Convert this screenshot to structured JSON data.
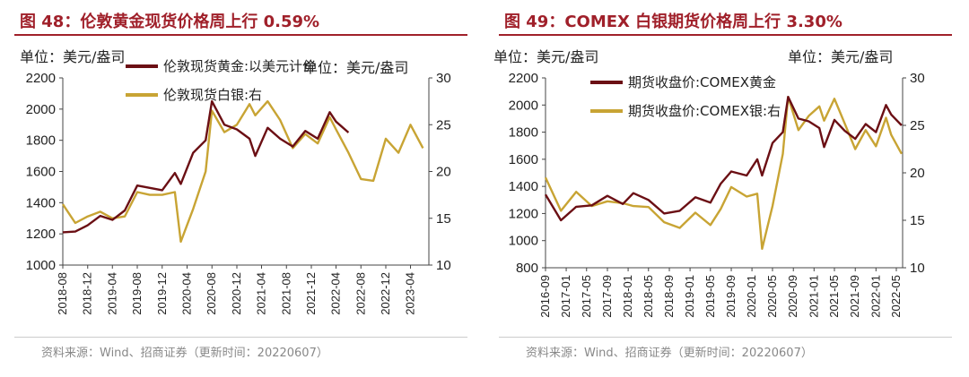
{
  "charts": [
    {
      "title": "图 48：伦敦黄金现货价格周上行 0.59%",
      "left_unit": "单位：美元/盎司",
      "right_unit": "单位：美元/盎司",
      "source": "资料来源：Wind、招商证券（更新时间：20220607）"
    },
    {
      "title": "图 49：COMEX 白银期货价格周上行 3.30%",
      "left_unit": "单位：美元/盎司",
      "right_unit": "单位：美元/盎司",
      "source": "资料来源：Wind、招商证券（更新时间：20220607）"
    }
  ],
  "chart_data": [
    {
      "type": "line",
      "title": "图 48：伦敦黄金现货价格周上行 0.59%",
      "x_ticks": [
        "2018-08",
        "2018-12",
        "2019-04",
        "2019-08",
        "2019-12",
        "2020-04",
        "2020-08",
        "2020-12",
        "2021-04",
        "2021-08",
        "2021-12",
        "2022-04",
        "2022-08",
        "2022-12",
        "2023-04"
      ],
      "x_start": "2018-08-01",
      "x_end": "2023-06-30",
      "y_left": {
        "min": 1000,
        "max": 2200,
        "ticks": [
          1000,
          1200,
          1400,
          1600,
          1800,
          2000,
          2200
        ]
      },
      "y_right": {
        "min": 10,
        "max": 30,
        "ticks": [
          10,
          15,
          20,
          25,
          30
        ]
      },
      "series": [
        {
          "name": "伦敦现货黄金:以美元计价",
          "axis": "left",
          "color": "#6b0f14",
          "x": [
            "2018-08",
            "2018-10",
            "2018-12",
            "2019-02",
            "2019-04",
            "2019-06",
            "2019-08",
            "2019-10",
            "2019-12",
            "2020-02",
            "2020-03",
            "2020-05",
            "2020-07",
            "2020-08",
            "2020-10",
            "2020-12",
            "2021-02",
            "2021-03",
            "2021-05",
            "2021-07",
            "2021-09",
            "2021-11",
            "2022-01",
            "2022-03",
            "2022-04",
            "2022-06"
          ],
          "values": [
            1210,
            1215,
            1255,
            1315,
            1290,
            1350,
            1510,
            1495,
            1480,
            1590,
            1520,
            1720,
            1800,
            2050,
            1900,
            1870,
            1810,
            1700,
            1880,
            1810,
            1760,
            1860,
            1810,
            1980,
            1920,
            1850
          ]
        },
        {
          "name": "伦敦现货白银:右",
          "axis": "right",
          "color": "#c8a434",
          "x": [
            "2018-08",
            "2018-10",
            "2018-12",
            "2019-02",
            "2019-04",
            "2019-06",
            "2019-08",
            "2019-10",
            "2019-12",
            "2020-02",
            "2020-03",
            "2020-05",
            "2020-07",
            "2020-08",
            "2020-10",
            "2020-12",
            "2021-02",
            "2021-03",
            "2021-05",
            "2021-07",
            "2021-09",
            "2021-11",
            "2022-01",
            "2022-03",
            "2022-04",
            "2022-06",
            "2022-08",
            "2022-10",
            "2022-12",
            "2023-02",
            "2023-04",
            "2023-06"
          ],
          "values": [
            16.5,
            14.5,
            15.2,
            15.7,
            15.0,
            15.2,
            17.8,
            17.5,
            17.5,
            17.8,
            12.5,
            16.0,
            20.0,
            26.5,
            24.2,
            25.0,
            27.2,
            26.0,
            27.5,
            25.5,
            22.5,
            24.0,
            23.0,
            25.8,
            24.5,
            22.0,
            19.2,
            19.0,
            23.5,
            22.0,
            25.0,
            22.5
          ]
        }
      ]
    },
    {
      "type": "line",
      "title": "图 49：COMEX 白银期货价格周上行 3.30%",
      "x_ticks": [
        "2016-09",
        "2017-01",
        "2017-05",
        "2017-09",
        "2018-01",
        "2018-05",
        "2018-09",
        "2019-01",
        "2019-05",
        "2019-09",
        "2020-01",
        "2020-05",
        "2020-09",
        "2021-01",
        "2021-05",
        "2021-09",
        "2022-01",
        "2022-05"
      ],
      "x_start": "2016-09-01",
      "x_end": "2022-06-07",
      "y_left": {
        "min": 800,
        "max": 2200,
        "ticks": [
          800,
          1000,
          1200,
          1400,
          1600,
          1800,
          2000,
          2200
        ]
      },
      "y_right": {
        "min": 10,
        "max": 30,
        "ticks": [
          10,
          15,
          20,
          25,
          30
        ]
      },
      "series": [
        {
          "name": "期货收盘价:COMEX黄金",
          "axis": "left",
          "color": "#6b0f14",
          "x": [
            "2016-09",
            "2016-12",
            "2017-03",
            "2017-06",
            "2017-09",
            "2017-12",
            "2018-02",
            "2018-05",
            "2018-08",
            "2018-11",
            "2019-02",
            "2019-05",
            "2019-07",
            "2019-09",
            "2019-12",
            "2020-02",
            "2020-03",
            "2020-05",
            "2020-07",
            "2020-08",
            "2020-10",
            "2020-12",
            "2021-02",
            "2021-03",
            "2021-05",
            "2021-07",
            "2021-09",
            "2021-11",
            "2022-01",
            "2022-03",
            "2022-04",
            "2022-06"
          ],
          "values": [
            1340,
            1150,
            1250,
            1260,
            1330,
            1270,
            1350,
            1300,
            1200,
            1220,
            1320,
            1280,
            1420,
            1510,
            1480,
            1600,
            1480,
            1720,
            1800,
            2060,
            1900,
            1880,
            1830,
            1690,
            1890,
            1810,
            1750,
            1860,
            1800,
            2000,
            1930,
            1850
          ]
        },
        {
          "name": "期货收盘价:COMEX银:右",
          "axis": "right",
          "color": "#c8a434",
          "x": [
            "2016-09",
            "2016-12",
            "2017-03",
            "2017-06",
            "2017-09",
            "2017-12",
            "2018-02",
            "2018-05",
            "2018-08",
            "2018-11",
            "2019-02",
            "2019-05",
            "2019-07",
            "2019-09",
            "2019-12",
            "2020-02",
            "2020-03",
            "2020-05",
            "2020-07",
            "2020-08",
            "2020-10",
            "2020-12",
            "2021-02",
            "2021-03",
            "2021-05",
            "2021-07",
            "2021-09",
            "2021-11",
            "2022-01",
            "2022-03",
            "2022-04",
            "2022-06"
          ],
          "values": [
            19.5,
            16.0,
            18.0,
            16.5,
            17.0,
            16.8,
            16.5,
            16.4,
            14.8,
            14.2,
            15.8,
            14.5,
            16.2,
            18.5,
            17.5,
            17.8,
            12.0,
            16.5,
            22.0,
            28.0,
            24.5,
            26.0,
            27.0,
            25.5,
            27.8,
            25.2,
            22.5,
            24.5,
            22.8,
            25.8,
            24.0,
            22.0
          ]
        }
      ]
    }
  ]
}
